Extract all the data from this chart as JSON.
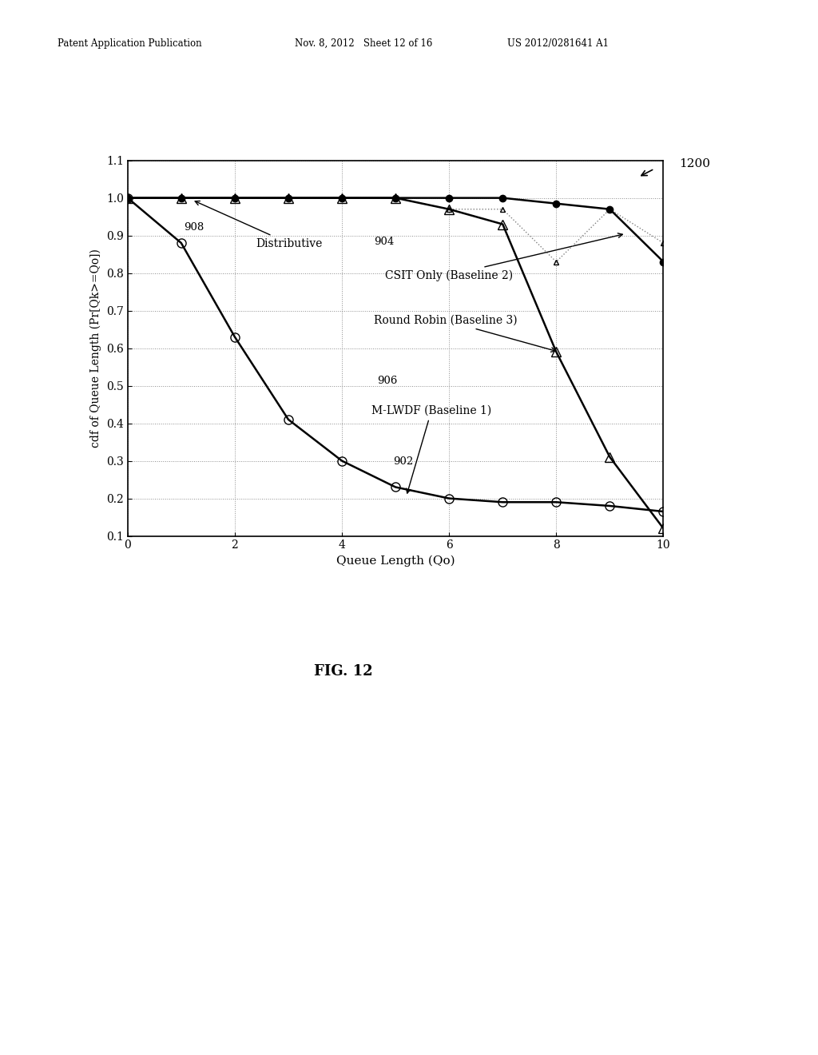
{
  "xlabel": "Queue Length (Qo)",
  "ylabel": "cdf of Queue Length (Pr[Qk>=Qo])",
  "xlim": [
    0,
    10
  ],
  "ylim": [
    0.1,
    1.1
  ],
  "xticks": [
    0,
    2,
    4,
    6,
    8,
    10
  ],
  "yticks": [
    0.1,
    0.2,
    0.3,
    0.4,
    0.5,
    0.6,
    0.7,
    0.8,
    0.9,
    1.0,
    1.1
  ],
  "series_902_x": [
    0,
    1,
    2,
    3,
    4,
    5,
    6,
    7,
    8,
    9,
    10
  ],
  "series_902_y": [
    1.0,
    0.88,
    0.63,
    0.41,
    0.3,
    0.23,
    0.2,
    0.19,
    0.19,
    0.18,
    0.165
  ],
  "series_904_x": [
    0,
    1,
    2,
    3,
    4,
    5,
    6,
    7,
    8,
    9,
    10
  ],
  "series_904_y": [
    1.0,
    1.0,
    1.0,
    1.0,
    1.0,
    1.0,
    1.0,
    1.0,
    0.985,
    0.97,
    0.83
  ],
  "series_906_x": [
    0,
    1,
    2,
    3,
    4,
    5,
    6,
    7,
    8,
    9,
    10
  ],
  "series_906_y": [
    1.0,
    1.0,
    1.0,
    1.0,
    1.0,
    1.0,
    0.97,
    0.93,
    0.59,
    0.31,
    0.12
  ],
  "series_908_x": [
    0,
    1,
    2,
    3,
    4,
    5,
    6,
    7,
    8,
    9,
    10
  ],
  "series_908_y": [
    1.0,
    1.0,
    1.0,
    1.0,
    1.0,
    1.0,
    0.97,
    0.97,
    0.83,
    0.97,
    0.88
  ],
  "header_left": "Patent Application Publication",
  "header_mid": "Nov. 8, 2012   Sheet 12 of 16",
  "header_right": "US 2012/0281641 A1",
  "figure_label": "FIG. 12",
  "figure_number": "1200",
  "label_902": "902",
  "label_904": "904",
  "label_906": "906",
  "label_908": "908",
  "annotation_distributive": "Distributive",
  "annotation_csit": "CSIT Only (Baseline 2)",
  "annotation_rr": "Round Robin (Baseline 3)",
  "annotation_mlwdf": "M-LWDF (Baseline 1)",
  "background_color": "#ffffff",
  "line_color": "#000000"
}
